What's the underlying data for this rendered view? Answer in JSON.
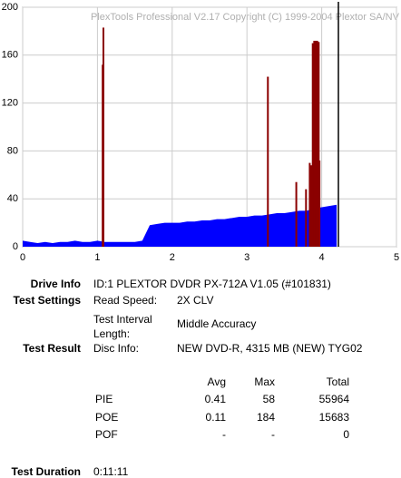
{
  "chart_data": {
    "type": "area",
    "title": "PlexTools Professional V2.17 Copyright (C) 1999-2004 Plextor SA/NV",
    "xlim": [
      0,
      5
    ],
    "xticks": [
      0,
      1,
      2,
      3,
      4,
      5
    ],
    "ylim": [
      0,
      200
    ],
    "yticks": [
      0,
      40,
      80,
      120,
      160,
      200
    ],
    "grid": true,
    "series": [
      {
        "type": "area",
        "color": "#0000ff",
        "x": [
          0,
          0.1,
          0.2,
          0.3,
          0.4,
          0.5,
          0.6,
          0.7,
          0.8,
          0.9,
          1.0,
          1.1,
          1.2,
          1.3,
          1.4,
          1.5,
          1.6,
          1.7,
          1.8,
          1.9,
          2.0,
          2.1,
          2.2,
          2.3,
          2.4,
          2.5,
          2.6,
          2.7,
          2.8,
          2.9,
          3.0,
          3.1,
          3.2,
          3.3,
          3.4,
          3.5,
          3.6,
          3.7,
          3.8,
          3.9,
          4.0,
          4.1,
          4.2
        ],
        "values": [
          5,
          4,
          3,
          4,
          3,
          4,
          4,
          5,
          4,
          4,
          5,
          4,
          4,
          4,
          4,
          4,
          5,
          18,
          19,
          20,
          20,
          20,
          21,
          21,
          22,
          22,
          23,
          23,
          24,
          25,
          25,
          26,
          26,
          27,
          28,
          28,
          29,
          30,
          30,
          32,
          33,
          34,
          35
        ]
      },
      {
        "type": "bar",
        "color": "#8b0000",
        "x": [
          1.07,
          1.08,
          3.28,
          3.66,
          3.79,
          3.84,
          3.86,
          3.88,
          3.9,
          3.92,
          3.94,
          3.96,
          3.97
        ],
        "values": [
          152,
          183,
          142,
          54,
          48,
          70,
          68,
          170,
          172,
          172,
          172,
          171,
          72
        ]
      }
    ]
  },
  "info": {
    "drive_info": {
      "label": "Drive Info",
      "value": "ID:1 PLEXTOR DVDR PX-712A V1.05 (#101831)"
    },
    "test_settings": {
      "label": "Test Settings",
      "rows": [
        [
          "Read Speed:",
          "2X CLV"
        ],
        [
          "Test Interval Length:",
          "Middle Accuracy"
        ]
      ]
    },
    "test_result": {
      "label": "Test Result",
      "key": "Disc Info:",
      "value": "NEW DVD-R, 4315 MB (NEW) TYG02"
    },
    "stats": {
      "header": [
        "Avg",
        "Max",
        "Total"
      ],
      "rows": [
        [
          "PIE",
          0.41,
          58,
          55964
        ],
        [
          "POE",
          0.11,
          184,
          15683
        ],
        [
          "POF",
          "-",
          "-",
          0
        ]
      ]
    },
    "test_duration": {
      "label": "Test Duration",
      "value": "0:11:11"
    }
  }
}
